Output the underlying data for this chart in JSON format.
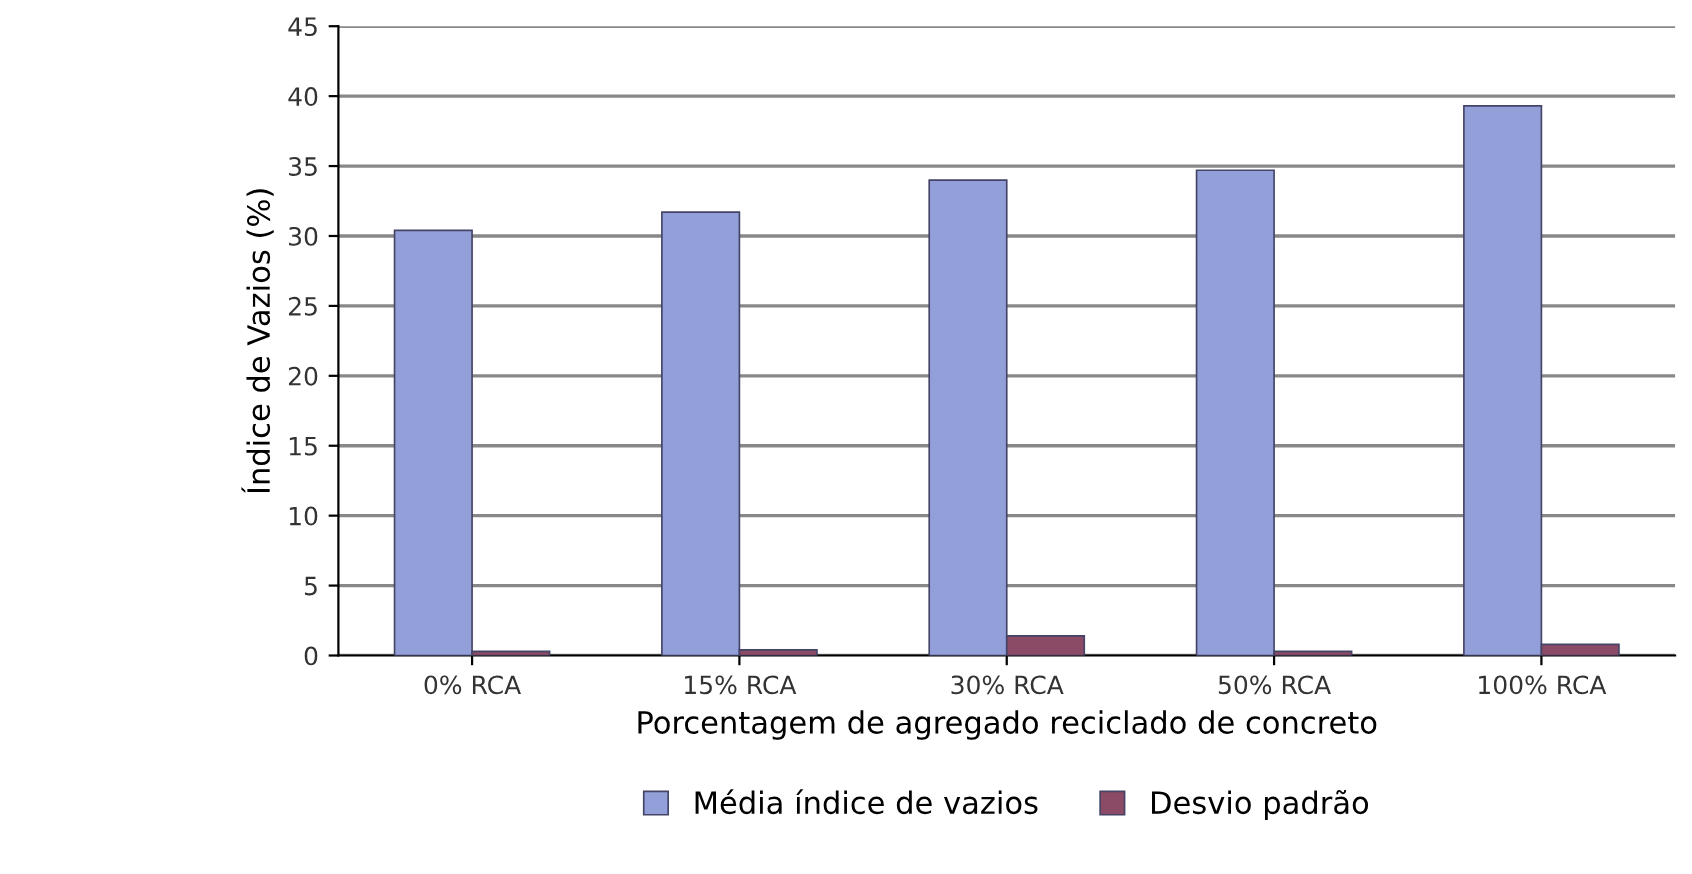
{
  "chart_data": {
    "type": "bar",
    "xlabel": "Porcentagem de agregado reciclado de concreto",
    "ylabel": "Índice de Vazios (%)",
    "categories": [
      "0% RCA",
      "15% RCA",
      "30% RCA",
      "50% RCA",
      "100% RCA"
    ],
    "series": [
      {
        "name": "Média índice de vazios",
        "color": "#939fd8",
        "values": [
          30.4,
          31.7,
          34.0,
          34.7,
          39.3
        ]
      },
      {
        "name": "Desvio padrão",
        "color": "#8b4a66",
        "values": [
          0.3,
          0.4,
          1.4,
          0.3,
          0.8
        ]
      }
    ],
    "ylim": [
      0,
      45
    ],
    "yticks": [
      0,
      5,
      10,
      15,
      20,
      25,
      30,
      35,
      40,
      45
    ],
    "grid": "y",
    "legend": "bottom"
  }
}
